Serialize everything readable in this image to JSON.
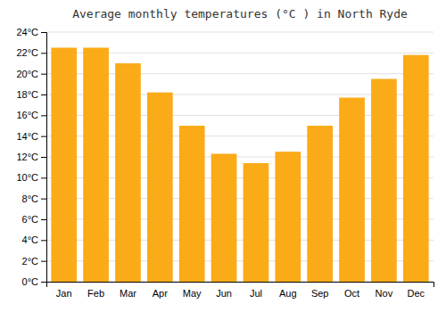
{
  "chart_data": {
    "type": "bar",
    "title": "Average monthly temperatures (°C ) in North Ryde",
    "categories": [
      "Jan",
      "Feb",
      "Mar",
      "Apr",
      "May",
      "Jun",
      "Jul",
      "Aug",
      "Sep",
      "Oct",
      "Nov",
      "Dec"
    ],
    "values": [
      22.5,
      22.5,
      21.0,
      18.2,
      15.0,
      12.3,
      11.4,
      12.5,
      15.0,
      17.7,
      19.5,
      21.8
    ],
    "color": "#FBAB18",
    "ylim": [
      0,
      24
    ],
    "yticks": [
      {
        "value": 0,
        "label": "0°C"
      },
      {
        "value": 2,
        "label": "2°C"
      },
      {
        "value": 4,
        "label": "4°C"
      },
      {
        "value": 6,
        "label": "6°C"
      },
      {
        "value": 8,
        "label": "8°C"
      },
      {
        "value": 10,
        "label": "10°C"
      },
      {
        "value": 12,
        "label": "12°C"
      },
      {
        "value": 14,
        "label": "14°C"
      },
      {
        "value": 16,
        "label": "16°C"
      },
      {
        "value": 18,
        "label": "18°C"
      },
      {
        "value": 20,
        "label": "20°C"
      },
      {
        "value": 22,
        "label": "22°C"
      },
      {
        "value": 24,
        "label": "24°C"
      }
    ],
    "grid": true
  }
}
